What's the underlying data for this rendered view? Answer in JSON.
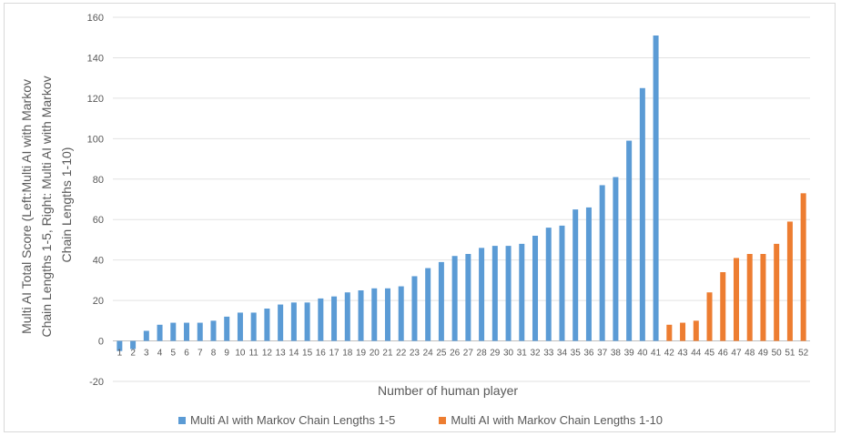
{
  "chart_data": {
    "type": "bar",
    "xlabel": "Number of human player",
    "ylabel_lines": [
      "Multi AI Total Score (Left:Multi AI with Markov",
      "Chain Lengths 1-5, Right: Multi AI with Markov",
      "Chain Lengths 1-10)"
    ],
    "ylim": [
      -20,
      160
    ],
    "yticks": [
      -20,
      0,
      20,
      40,
      60,
      80,
      100,
      120,
      140,
      160
    ],
    "grid": true,
    "legend_position": "bottom",
    "categories": [
      "1",
      "2",
      "3",
      "4",
      "5",
      "6",
      "7",
      "8",
      "9",
      "10",
      "11",
      "12",
      "13",
      "14",
      "15",
      "16",
      "17",
      "18",
      "19",
      "20",
      "21",
      "22",
      "23",
      "24",
      "25",
      "26",
      "27",
      "28",
      "29",
      "30",
      "31",
      "32",
      "33",
      "34",
      "35",
      "36",
      "37",
      "38",
      "39",
      "40",
      "41",
      "42",
      "43",
      "44",
      "45",
      "46",
      "47",
      "48",
      "49",
      "50",
      "51",
      "52"
    ],
    "series": [
      {
        "name": "Multi AI with Markov Chain Lengths 1-5",
        "color": "#5b9bd5",
        "values": [
          -5,
          -4,
          5,
          8,
          9,
          9,
          9,
          10,
          12,
          14,
          14,
          16,
          18,
          19,
          19,
          21,
          22,
          24,
          25,
          26,
          26,
          27,
          32,
          36,
          39,
          42,
          43,
          46,
          47,
          47,
          48,
          52,
          56,
          57,
          65,
          66,
          77,
          81,
          99,
          125,
          151,
          null,
          null,
          null,
          null,
          null,
          null,
          null,
          null,
          null,
          null,
          null
        ]
      },
      {
        "name": "Multi AI with Markov Chain Lengths 1-10",
        "color": "#ed7d31",
        "values": [
          null,
          null,
          null,
          null,
          null,
          null,
          null,
          null,
          null,
          null,
          null,
          null,
          null,
          null,
          null,
          null,
          null,
          null,
          null,
          null,
          null,
          null,
          null,
          null,
          null,
          null,
          null,
          null,
          null,
          null,
          null,
          null,
          null,
          null,
          null,
          null,
          null,
          null,
          null,
          null,
          null,
          8,
          9,
          10,
          24,
          34,
          41,
          43,
          43,
          48,
          59,
          73
        ]
      }
    ]
  }
}
